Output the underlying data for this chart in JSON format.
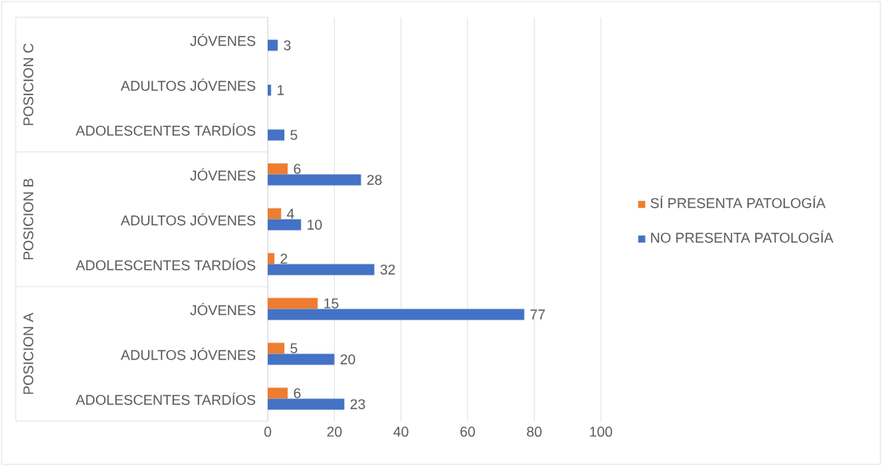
{
  "chart_data": {
    "type": "bar",
    "orientation": "horizontal",
    "categories": [
      "JÓVENES",
      "ADULTOS JÓVENES",
      "ADOLESCENTES TARDÍOS",
      "JÓVENES",
      "ADULTOS JÓVENES",
      "ADOLESCENTES TARDÍOS",
      "JÓVENES",
      "ADULTOS JÓVENES",
      "ADOLESCENTES TARDÍOS"
    ],
    "annotations": [
      "POSICION C",
      "POSICION B",
      "POSICION A"
    ],
    "series": [
      {
        "name": "SÍ PRESENTA PATOLOGÍA",
        "color": "#ed7d31",
        "values": [
          null,
          null,
          null,
          6,
          4,
          2,
          15,
          5,
          6
        ]
      },
      {
        "name": "NO PRESENTA PATOLOGÍA",
        "color": "#4472c4",
        "values": [
          3,
          1,
          5,
          28,
          10,
          32,
          77,
          20,
          23
        ]
      }
    ],
    "xlim": [
      0,
      100
    ],
    "xticks": [
      0,
      20,
      40,
      60,
      80,
      100
    ],
    "grid": "x",
    "legend": "right",
    "data_labels": true
  }
}
